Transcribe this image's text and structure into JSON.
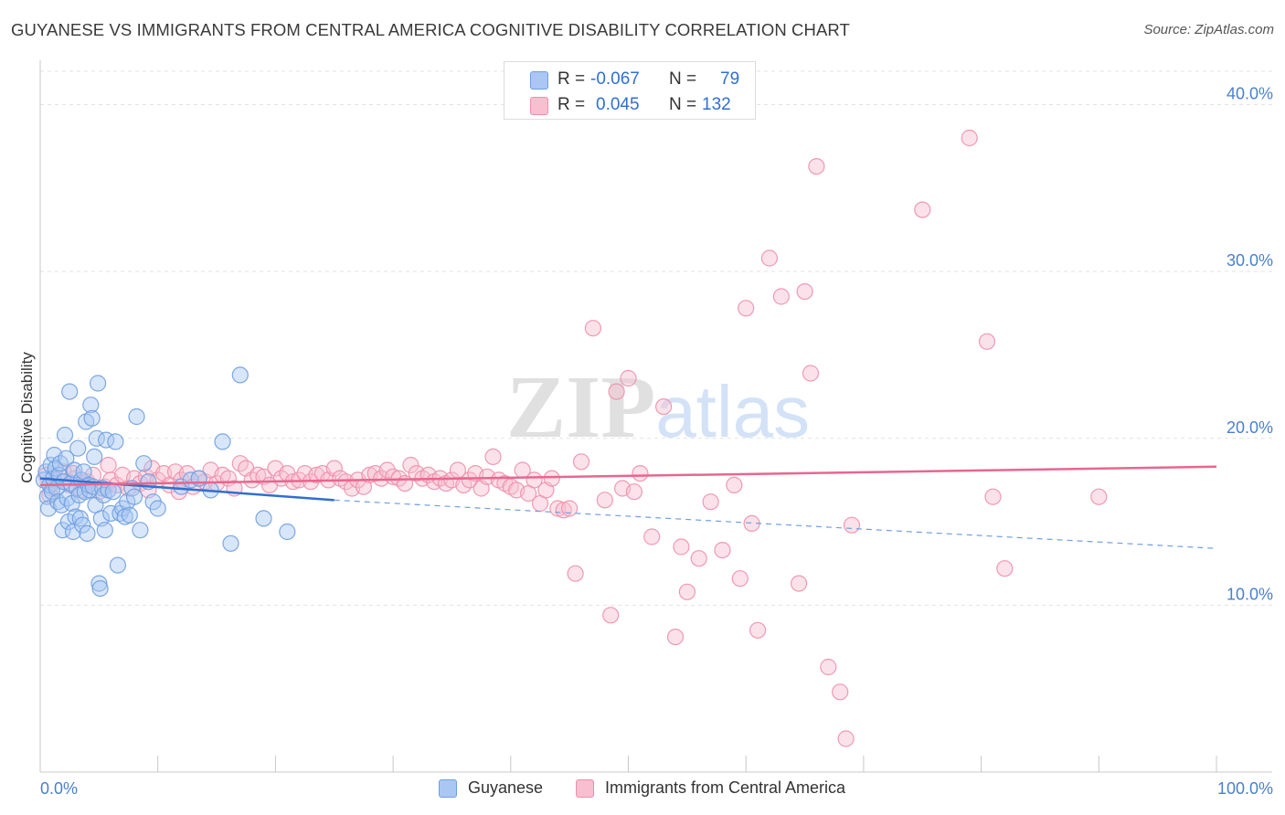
{
  "header": {
    "title": "GUYANESE VS IMMIGRANTS FROM CENTRAL AMERICA COGNITIVE DISABILITY CORRELATION CHART",
    "source": "Source: ZipAtlas.com"
  },
  "legend": {
    "rows": [
      {
        "r_label": "R =",
        "r_value": "-0.067",
        "n_label": "N =",
        "n_value": "79",
        "color": "#a9c7f2",
        "border": "#6f9fe0"
      },
      {
        "r_label": "R =",
        "r_value": "0.045",
        "n_label": "N =",
        "n_value": "132",
        "color": "#f7bfd0",
        "border": "#ee8fab"
      }
    ]
  },
  "bottom_legend": {
    "guyanese": "Guyanese",
    "immigrants": "Immigrants from Central America"
  },
  "watermark": "ZIPatlas",
  "chart_data": {
    "type": "scatter",
    "title": "GUYANESE VS IMMIGRANTS FROM CENTRAL AMERICA COGNITIVE DISABILITY CORRELATION CHART",
    "xlabel": "",
    "ylabel": "Cognitive Disability",
    "xlim": [
      0,
      100
    ],
    "ylim": [
      0,
      42
    ],
    "x_ticks": [
      "0.0%",
      "100.0%"
    ],
    "y_ticks": [
      {
        "value": 10,
        "label": "10.0%"
      },
      {
        "value": 20,
        "label": "20.0%"
      },
      {
        "value": 30,
        "label": "30.0%"
      },
      {
        "value": 40,
        "label": "40.0%"
      }
    ],
    "grid": true,
    "legend_position": "top-center",
    "series": [
      {
        "name": "Guyanese",
        "color": "#6f9fe0",
        "fill": "#a9c7f2",
        "trend": {
          "x0": 0,
          "y0": 17.6,
          "x1": 25,
          "y1": 16.3,
          "dash_to_x": 100,
          "dash_to_y": 13.4
        },
        "points": [
          [
            0.3,
            17.5
          ],
          [
            0.5,
            18.0
          ],
          [
            0.6,
            16.5
          ],
          [
            0.7,
            15.8
          ],
          [
            0.8,
            17.2
          ],
          [
            0.9,
            18.4
          ],
          [
            1.0,
            16.8
          ],
          [
            1.1,
            17.6
          ],
          [
            1.2,
            19.0
          ],
          [
            1.3,
            18.2
          ],
          [
            1.4,
            17.0
          ],
          [
            1.5,
            16.2
          ],
          [
            1.6,
            17.8
          ],
          [
            1.7,
            18.5
          ],
          [
            1.8,
            16.0
          ],
          [
            1.9,
            14.5
          ],
          [
            2.0,
            17.4
          ],
          [
            2.1,
            20.2
          ],
          [
            2.2,
            18.8
          ],
          [
            2.3,
            16.4
          ],
          [
            2.4,
            15.0
          ],
          [
            2.5,
            22.8
          ],
          [
            2.6,
            17.3
          ],
          [
            2.7,
            16.1
          ],
          [
            2.8,
            14.4
          ],
          [
            2.9,
            18.1
          ],
          [
            3.0,
            15.3
          ],
          [
            3.1,
            17.0
          ],
          [
            3.2,
            19.4
          ],
          [
            3.3,
            16.6
          ],
          [
            3.4,
            15.2
          ],
          [
            3.5,
            17.5
          ],
          [
            3.6,
            14.8
          ],
          [
            3.7,
            18.0
          ],
          [
            3.8,
            16.8
          ],
          [
            3.9,
            21.0
          ],
          [
            4.0,
            14.3
          ],
          [
            4.1,
            17.2
          ],
          [
            4.2,
            16.9
          ],
          [
            4.3,
            22.0
          ],
          [
            4.4,
            21.2
          ],
          [
            4.5,
            17.1
          ],
          [
            4.6,
            18.9
          ],
          [
            4.7,
            16.0
          ],
          [
            4.8,
            20.0
          ],
          [
            4.9,
            23.3
          ],
          [
            5.0,
            11.3
          ],
          [
            5.1,
            11.0
          ],
          [
            5.2,
            15.2
          ],
          [
            5.3,
            17.0
          ],
          [
            5.4,
            16.6
          ],
          [
            5.5,
            14.5
          ],
          [
            5.6,
            19.9
          ],
          [
            5.8,
            16.9
          ],
          [
            6.0,
            15.5
          ],
          [
            6.2,
            16.8
          ],
          [
            6.4,
            19.8
          ],
          [
            6.6,
            12.4
          ],
          [
            6.8,
            15.5
          ],
          [
            7.0,
            15.8
          ],
          [
            7.2,
            15.3
          ],
          [
            7.4,
            16.2
          ],
          [
            7.6,
            15.4
          ],
          [
            7.8,
            17.0
          ],
          [
            8.0,
            16.5
          ],
          [
            8.2,
            21.3
          ],
          [
            8.5,
            14.5
          ],
          [
            8.8,
            18.5
          ],
          [
            9.2,
            17.4
          ],
          [
            9.6,
            16.2
          ],
          [
            10.0,
            15.8
          ],
          [
            12.0,
            17.1
          ],
          [
            12.8,
            17.5
          ],
          [
            13.5,
            17.6
          ],
          [
            14.5,
            16.9
          ],
          [
            15.5,
            19.8
          ],
          [
            16.2,
            13.7
          ],
          [
            17.0,
            23.8
          ],
          [
            19.0,
            15.2
          ],
          [
            21.0,
            14.4
          ]
        ]
      },
      {
        "name": "Immigrants from Central America",
        "color": "#ee8fab",
        "fill": "#f7bfd0",
        "trend": {
          "x0": 0,
          "y0": 17.2,
          "x1": 100,
          "y1": 18.3
        },
        "points": [
          [
            0.5,
            17.8
          ],
          [
            1.0,
            17.0
          ],
          [
            1.5,
            17.5
          ],
          [
            2.0,
            18.0
          ],
          [
            2.5,
            17.2
          ],
          [
            3.0,
            17.6
          ],
          [
            3.5,
            16.9
          ],
          [
            4.0,
            17.4
          ],
          [
            4.5,
            17.8
          ],
          [
            5.0,
            16.8
          ],
          [
            5.5,
            17.1
          ],
          [
            6.0,
            17.5
          ],
          [
            6.5,
            17.2
          ],
          [
            7.0,
            17.8
          ],
          [
            7.5,
            17.0
          ],
          [
            8.0,
            17.6
          ],
          [
            8.5,
            17.3
          ],
          [
            9.0,
            17.7
          ],
          [
            9.5,
            18.2
          ],
          [
            10.0,
            17.5
          ],
          [
            10.5,
            17.9
          ],
          [
            11.0,
            17.2
          ],
          [
            11.5,
            18.0
          ],
          [
            12.0,
            17.5
          ],
          [
            12.5,
            17.9
          ],
          [
            13.0,
            17.1
          ],
          [
            13.5,
            17.6
          ],
          [
            14.0,
            17.4
          ],
          [
            14.5,
            18.1
          ],
          [
            15.0,
            17.3
          ],
          [
            15.5,
            17.8
          ],
          [
            16.0,
            17.6
          ],
          [
            16.5,
            17.0
          ],
          [
            17.0,
            18.5
          ],
          [
            17.5,
            18.2
          ],
          [
            18.0,
            17.5
          ],
          [
            18.5,
            17.8
          ],
          [
            19.0,
            17.7
          ],
          [
            19.5,
            17.2
          ],
          [
            20.0,
            18.2
          ],
          [
            20.5,
            17.6
          ],
          [
            21.0,
            17.9
          ],
          [
            21.5,
            17.4
          ],
          [
            22.0,
            17.5
          ],
          [
            22.5,
            17.9
          ],
          [
            23.0,
            17.4
          ],
          [
            23.5,
            17.8
          ],
          [
            24.0,
            17.9
          ],
          [
            24.5,
            17.5
          ],
          [
            25.0,
            18.2
          ],
          [
            25.5,
            17.6
          ],
          [
            26.0,
            17.4
          ],
          [
            26.5,
            17.0
          ],
          [
            27.0,
            17.5
          ],
          [
            27.5,
            17.1
          ],
          [
            28.0,
            17.8
          ],
          [
            28.5,
            17.9
          ],
          [
            29.0,
            17.6
          ],
          [
            29.5,
            18.1
          ],
          [
            30.0,
            17.7
          ],
          [
            30.5,
            17.6
          ],
          [
            31.0,
            17.3
          ],
          [
            31.5,
            18.4
          ],
          [
            32.0,
            17.9
          ],
          [
            32.5,
            17.6
          ],
          [
            33.0,
            17.8
          ],
          [
            33.5,
            17.4
          ],
          [
            34.0,
            17.6
          ],
          [
            34.5,
            17.3
          ],
          [
            35.0,
            17.5
          ],
          [
            35.5,
            18.1
          ],
          [
            36.0,
            17.2
          ],
          [
            36.5,
            17.5
          ],
          [
            37.0,
            17.9
          ],
          [
            37.5,
            17.0
          ],
          [
            38.0,
            17.7
          ],
          [
            38.5,
            18.9
          ],
          [
            39.0,
            17.5
          ],
          [
            39.5,
            17.3
          ],
          [
            40.0,
            17.1
          ],
          [
            40.5,
            16.9
          ],
          [
            41.0,
            18.1
          ],
          [
            41.5,
            16.7
          ],
          [
            42.0,
            17.5
          ],
          [
            42.5,
            16.1
          ],
          [
            43.0,
            16.9
          ],
          [
            43.5,
            17.6
          ],
          [
            44.0,
            15.8
          ],
          [
            44.5,
            15.7
          ],
          [
            45.0,
            15.8
          ],
          [
            45.5,
            11.9
          ],
          [
            46.0,
            18.6
          ],
          [
            47.0,
            26.6
          ],
          [
            48.0,
            16.3
          ],
          [
            48.5,
            9.4
          ],
          [
            49.0,
            22.8
          ],
          [
            49.5,
            17.0
          ],
          [
            50.0,
            23.6
          ],
          [
            50.5,
            16.8
          ],
          [
            51.0,
            17.9
          ],
          [
            52.0,
            14.1
          ],
          [
            53.0,
            21.9
          ],
          [
            54.0,
            8.1
          ],
          [
            54.5,
            13.5
          ],
          [
            55.0,
            10.8
          ],
          [
            56.0,
            12.8
          ],
          [
            57.0,
            16.2
          ],
          [
            58.0,
            13.3
          ],
          [
            59.0,
            17.2
          ],
          [
            59.5,
            11.6
          ],
          [
            60.0,
            27.8
          ],
          [
            60.5,
            14.9
          ],
          [
            61.0,
            8.5
          ],
          [
            62.0,
            30.8
          ],
          [
            63.0,
            28.5
          ],
          [
            64.5,
            11.3
          ],
          [
            65.0,
            28.8
          ],
          [
            65.5,
            23.9
          ],
          [
            66.0,
            36.3
          ],
          [
            67.0,
            6.3
          ],
          [
            68.0,
            4.8
          ],
          [
            68.5,
            2.0
          ],
          [
            69.0,
            14.8
          ],
          [
            75.0,
            33.7
          ],
          [
            79.0,
            38.0
          ],
          [
            80.5,
            25.8
          ],
          [
            81.0,
            16.5
          ],
          [
            82.0,
            12.2
          ],
          [
            90.0,
            16.5
          ],
          [
            0.8,
            16.6
          ],
          [
            2.8,
            17.9
          ],
          [
            5.8,
            18.4
          ],
          [
            9.2,
            16.9
          ],
          [
            11.8,
            16.8
          ]
        ]
      }
    ]
  }
}
